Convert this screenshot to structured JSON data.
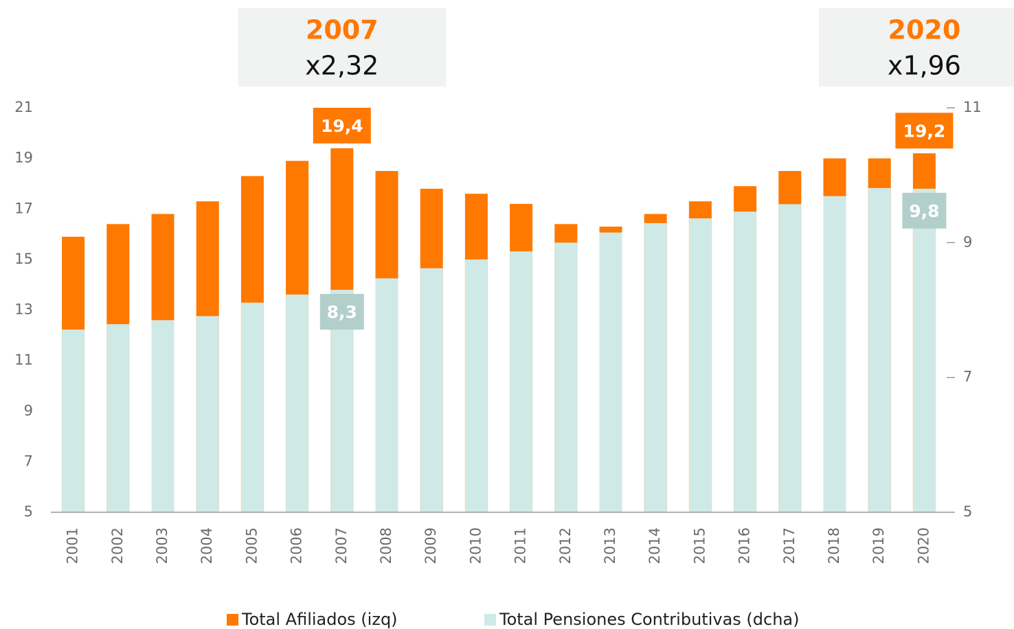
{
  "chart_data": {
    "type": "bar",
    "categories": [
      "2001",
      "2002",
      "2003",
      "2004",
      "2005",
      "2006",
      "2007",
      "2008",
      "2009",
      "2010",
      "2011",
      "2012",
      "2013",
      "2014",
      "2015",
      "2016",
      "2017",
      "2018",
      "2019",
      "2020"
    ],
    "series": [
      {
        "name": "Total Afiliados (izq)",
        "color": "#ff7800",
        "axis": "y",
        "values": [
          15.9,
          16.4,
          16.8,
          17.3,
          18.3,
          18.9,
          19.4,
          18.5,
          17.8,
          17.6,
          17.2,
          16.4,
          16.3,
          16.8,
          17.3,
          17.9,
          18.5,
          19.0,
          19.0,
          19.2
        ],
        "value_labels": [
          null,
          null,
          null,
          null,
          null,
          null,
          "19,4",
          null,
          null,
          null,
          null,
          null,
          null,
          null,
          null,
          null,
          null,
          null,
          null,
          "19,2"
        ]
      },
      {
        "name": "Total Pensiones Contributivas (dcha)",
        "color": "#cfe9e6",
        "axis": "y2",
        "values": [
          7.71,
          7.79,
          7.85,
          7.91,
          8.11,
          8.23,
          8.3,
          8.47,
          8.62,
          8.75,
          8.87,
          9.0,
          9.15,
          9.29,
          9.36,
          9.46,
          9.57,
          9.69,
          9.81,
          9.8
        ],
        "value_labels": [
          null,
          null,
          null,
          null,
          null,
          null,
          "8,3",
          null,
          null,
          null,
          null,
          null,
          null,
          null,
          null,
          null,
          null,
          null,
          null,
          "9,8"
        ]
      }
    ],
    "ylim": [
      5,
      21
    ],
    "yticks": [
      5,
      7,
      9,
      11,
      13,
      15,
      17,
      19,
      21
    ],
    "y2lim": [
      5,
      11
    ],
    "y2ticks": [
      5,
      7,
      9,
      11
    ],
    "annotations": [
      {
        "title": "2007",
        "text": "x2,32"
      },
      {
        "title": "2020",
        "text": "x1,96"
      }
    ]
  }
}
